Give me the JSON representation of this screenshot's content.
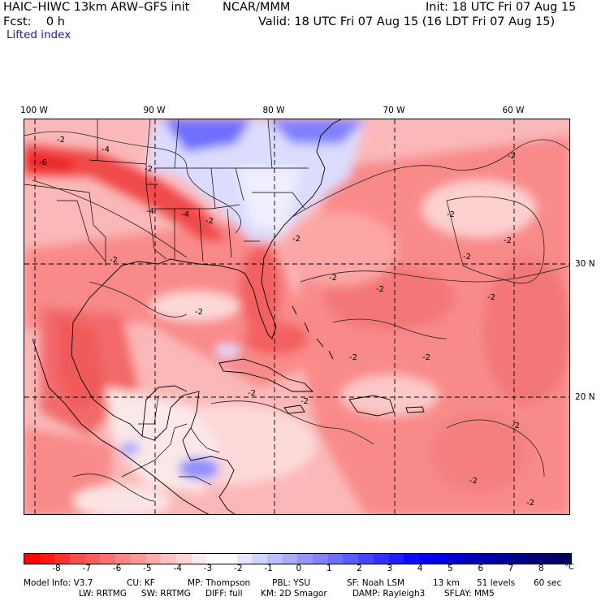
{
  "header": {
    "model": "HAIC–HIWC 13km ARW–GFS init",
    "center": "NCAR/MMM",
    "init": "Init: 18 UTC Fri 07 Aug 15",
    "fcst": "Fcst:    0 h",
    "valid": "Valid: 18 UTC Fri 07 Aug 15 (16 LDT Fri 07 Aug 15)",
    "field": "Lifted index"
  },
  "map": {
    "lon_labels": [
      "100 W",
      "90 W",
      "80 W",
      "70 W",
      "60 W"
    ],
    "lat_labels": [
      "30 N",
      "20 N"
    ],
    "contour_labels": [
      "-2",
      "-4",
      "-6"
    ]
  },
  "colorbar": {
    "unit": "°C",
    "ticks": [
      "-8",
      "-7",
      "-6",
      "-5",
      "-4",
      "-3",
      "-2",
      "-1",
      "0",
      "1",
      "2",
      "3",
      "4",
      "5",
      "6",
      "7",
      "8"
    ],
    "colors": [
      "#ff0000",
      "#ff1a1a",
      "#ff3333",
      "#ff4d4d",
      "#ff5c5c",
      "#ff7070",
      "#ff8585",
      "#ff9999",
      "#ffadad",
      "#ffc2c2",
      "#ffd6d6",
      "#ffeaea",
      "#ffffff",
      "#ffffff",
      "#e6e6ff",
      "#d2d2ff",
      "#bebeff",
      "#aaaaff",
      "#9696ff",
      "#8282ff",
      "#6e6eff",
      "#5a5aff",
      "#4646ff",
      "#3232ff",
      "#1e1eff",
      "#0a0aff",
      "#0000ee",
      "#0000dd",
      "#0000cc",
      "#0000bb",
      "#0000aa",
      "#000099",
      "#000088",
      "#000077",
      "#000066",
      "#000055"
    ]
  },
  "footer": {
    "line1": [
      "Model Info: V3.7",
      "CU: KF",
      "MP: Thompson",
      "PBL: YSU",
      "SF: Noah LSM",
      "13 km",
      "51 levels",
      "60 sec"
    ],
    "line2": [
      "LW: RRTMG",
      "SW: RRTMG",
      "DIFF: full",
      "KM: 2D Smagor",
      "DAMP: Rayleigh3",
      "SFLAY: MM5"
    ]
  }
}
